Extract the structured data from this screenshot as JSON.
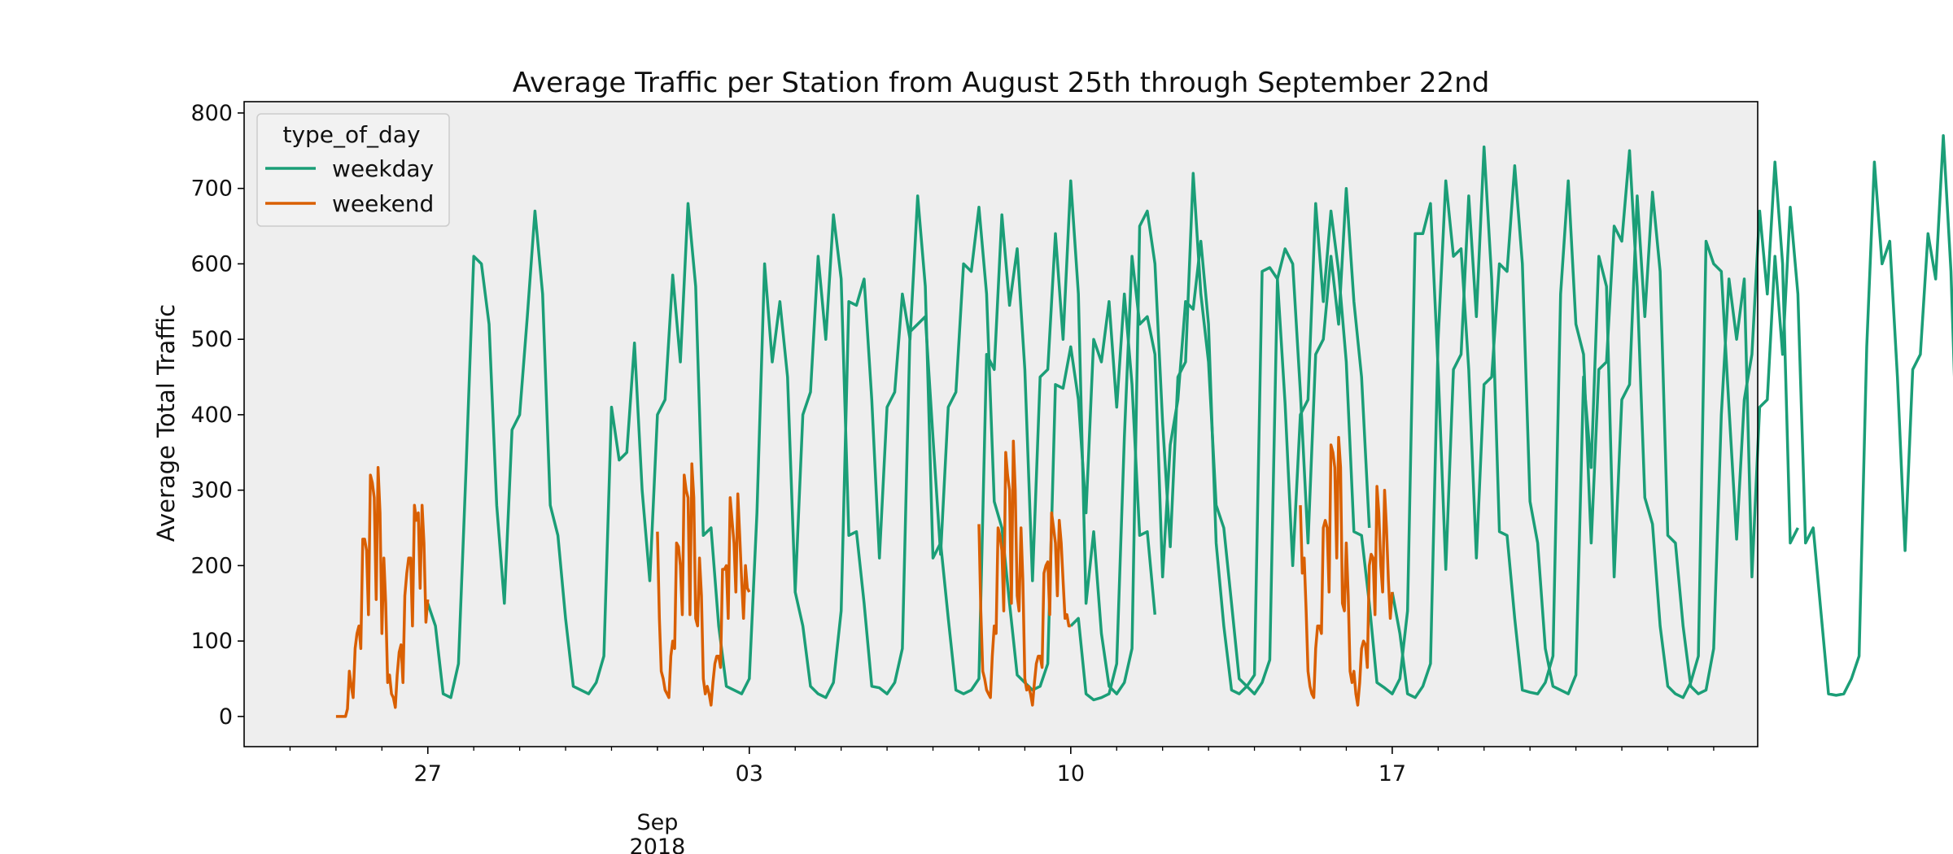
{
  "chart_data": {
    "type": "line",
    "title": "Average Traffic per Station from August 25th through September 22nd",
    "xlabel": "",
    "ylabel": "Average Total Traffic",
    "x_range": [
      "2018-08-23 00:00",
      "2018-09-24 23:00"
    ],
    "ylim": [
      -40,
      815
    ],
    "y_ticks": [
      0,
      100,
      200,
      300,
      400,
      500,
      600,
      700,
      800
    ],
    "x_major_ticks": [
      {
        "date": "2018-08-27",
        "label": "27"
      },
      {
        "date": "2018-09-03",
        "label": "03"
      },
      {
        "date": "2018-09-10",
        "label": "10"
      },
      {
        "date": "2018-09-17",
        "label": "17"
      }
    ],
    "x_secondary_label": {
      "date": "2018-09-01",
      "lines": [
        "Sep",
        "2018"
      ]
    },
    "grid": false,
    "legend": {
      "title": "type_of_day",
      "placement": "upper-left"
    },
    "plot_background": "#eeeeee",
    "series": [
      {
        "name": "weekday",
        "color": "#1b9e77",
        "segments": [
          {
            "start": "2018-08-27 00:00",
            "step_hours": 4,
            "values": [
              150,
              120,
              30,
              25,
              70,
              330,
              610,
              600,
              520,
              280,
              150,
              380,
              400,
              530,
              670,
              560,
              280,
              240,
              130,
              40,
              35,
              30,
              45,
              80,
              410,
              340,
              350,
              495,
              300,
              180,
              400,
              420,
              585,
              470,
              680,
              570,
              240,
              250,
              120,
              40,
              35,
              30,
              50,
              270,
              600,
              470,
              550,
              450,
              165,
              400,
              430,
              610,
              500,
              665,
              580,
              240,
              245,
              150,
              40,
              38,
              30,
              45,
              90,
              510,
              520,
              530,
              370,
              215,
              410,
              430,
              600,
              590,
              675,
              560,
              285,
              250,
              150,
              55,
              45,
              35,
              40,
              70,
              440,
              435,
              490,
              420,
              270,
              500,
              470,
              550,
              410,
              560,
              440,
              240,
              245,
              135
            ]
          },
          {
            "start": "2018-09-04 00:00",
            "step_hours": 4,
            "values": [
              165,
              120,
              40,
              30,
              25,
              45,
              140,
              550,
              545,
              580,
              420,
              210,
              410,
              430,
              560,
              500,
              690,
              570,
              210,
              230,
              130,
              35,
              30,
              35,
              50,
              480,
              460,
              665,
              545,
              620,
              460,
              180,
              450,
              460,
              640,
              500,
              710,
              560,
              150,
              245,
              110,
              40,
              30,
              45,
              90,
              650,
              670,
              600,
              390,
              225,
              450,
              470,
              720,
              560,
              470,
              280,
              250,
              150,
              50,
              40,
              30,
              45,
              75,
              580,
              620,
              600,
              430,
              230,
              480,
              500,
              610,
              520,
              700,
              550,
              450,
              250
            ]
          },
          {
            "start": "2018-09-10 00:00",
            "step_hours": 4,
            "values": [
              120,
              130,
              30,
              22,
              25,
              30,
              70,
              370,
              610,
              520,
              530,
              480,
              185,
              360,
              420,
              550,
              540,
              630,
              520,
              230,
              120,
              35,
              30,
              40,
              55,
              590,
              595,
              580,
              415,
              200,
              400,
              420,
              680,
              550,
              670,
              590,
              470,
              245,
              240,
              150,
              45,
              38,
              30,
              50,
              140,
              640,
              640,
              680,
              460,
              195,
              460,
              480,
              690,
              530,
              755,
              580,
              245,
              240,
              130,
              35,
              32,
              30,
              45,
              80,
              560,
              710,
              520,
              480,
              230,
              460,
              470,
              650,
              630,
              750,
              570,
              290,
              255,
              120,
              40,
              30,
              25,
              45,
              80,
              630,
              600,
              590,
              410,
              235,
              420,
              480,
              670,
              560,
              735,
              600,
              230,
              250
            ]
          },
          {
            "start": "2018-09-17 00:00",
            "step_hours": 4,
            "values": [
              165,
              110,
              30,
              25,
              40,
              70,
              500,
              710,
              610,
              620,
              460,
              210,
              440,
              450,
              600,
              590,
              730,
              600,
              285,
              230,
              90,
              40,
              35,
              30,
              55,
              450,
              330,
              610,
              570,
              185,
              420,
              440,
              690,
              530,
              695,
              590,
              240,
              230,
              120,
              40,
              30,
              35,
              90,
              400,
              580,
              500,
              580,
              185,
              410,
              420,
              610,
              480,
              675,
              560,
              230,
              250,
              140,
              30,
              28,
              30,
              50,
              80,
              490,
              735,
              600,
              630,
              450,
              220,
              460,
              480,
              640,
              580,
              770,
              590,
              280,
              245,
              130,
              50,
              35,
              30,
              50,
              90,
              610,
              655,
              560,
              600,
              400,
              245,
              480,
              490,
              700,
              560,
              735,
              600,
              460,
              240
            ]
          }
        ]
      },
      {
        "name": "weekend",
        "color": "#d95f02",
        "segments": [
          {
            "start": "2018-08-25 00:00",
            "step_hours": 1,
            "values": [
              0,
              0,
              0,
              0,
              0,
              0,
              10,
              60,
              40,
              25,
              90,
              110,
              120,
              90,
              235,
              235,
              220,
              135,
              320,
              310,
              290,
              155,
              330,
              270,
              110,
              210,
              150,
              45,
              55,
              30,
              25,
              12,
              55,
              85,
              95,
              45,
              160,
              190,
              210,
              210,
              120,
              280,
              260,
              270,
              170,
              280,
              230,
              125,
              155
            ]
          },
          {
            "start": "2018-09-01 00:00",
            "step_hours": 1,
            "values": [
              245,
              130,
              60,
              50,
              35,
              30,
              25,
              80,
              100,
              90,
              230,
              225,
              200,
              135,
              320,
              300,
              290,
              135,
              335,
              290,
              130,
              120,
              210,
              160,
              50,
              30,
              40,
              30,
              15,
              45,
              70,
              80,
              80,
              65,
              195,
              195,
              200,
              130,
              290,
              260,
              230,
              165,
              295,
              240,
              180,
              130,
              200,
              170,
              165
            ]
          },
          {
            "start": "2018-09-08 00:00",
            "step_hours": 1,
            "values": [
              255,
              140,
              60,
              50,
              35,
              30,
              25,
              80,
              120,
              110,
              250,
              240,
              220,
              140,
              350,
              320,
              300,
              150,
              365,
              300,
              160,
              140,
              250,
              180,
              50,
              35,
              40,
              30,
              15,
              45,
              70,
              80,
              80,
              65,
              190,
              200,
              205,
              135,
              270,
              250,
              230,
              160,
              260,
              230,
              180,
              130,
              135,
              120,
              120
            ]
          },
          {
            "start": "2018-09-15 00:00",
            "step_hours": 1,
            "values": [
              280,
              190,
              210,
              140,
              60,
              40,
              30,
              25,
              90,
              120,
              120,
              110,
              250,
              260,
              250,
              165,
              360,
              350,
              330,
              210,
              370,
              330,
              150,
              140,
              230,
              160,
              60,
              45,
              60,
              30,
              15,
              45,
              90,
              100,
              95,
              65,
              200,
              215,
              210,
              135,
              305,
              270,
              200,
              165,
              300,
              250,
              180,
              130,
              165
            ]
          }
        ]
      }
    ]
  }
}
